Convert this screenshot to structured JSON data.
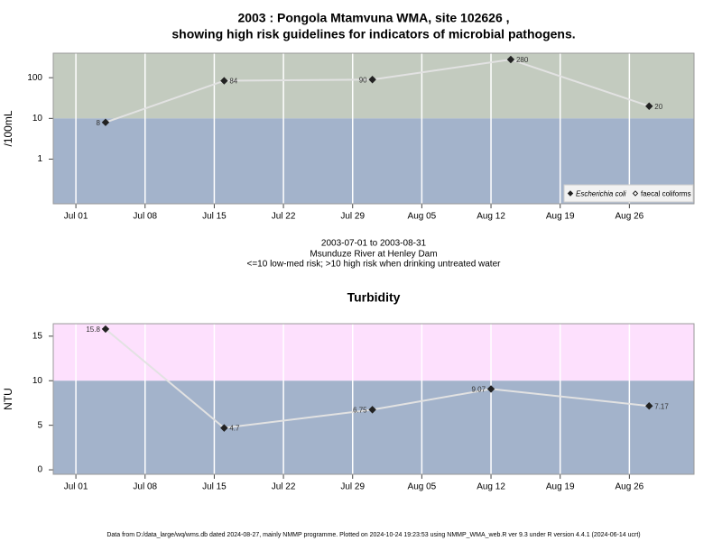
{
  "chart_data": [
    {
      "type": "line",
      "title": [
        "2003 : Pongola Mtamvuna WMA, site 102626 ,",
        "showing high risk guidelines for indicators of microbial pathogens."
      ],
      "ylabel": "/100mL",
      "notes": [
        "2003-07-01 to 2003-08-31",
        "Msunduze River at Henley Dam",
        "<=10 low-med risk; >10 high risk when drinking untreated water"
      ],
      "log_y": true,
      "x": [
        "2003-07-04",
        "2003-07-16",
        "2003-07-31",
        "2003-08-14",
        "2003-08-28"
      ],
      "series": [
        {
          "name": "Escherichia coli",
          "color": "#222222",
          "values": [
            8,
            84,
            90,
            280,
            20
          ]
        },
        {
          "name": "faecal coliforms",
          "color": "#ffffff",
          "values": [
            null,
            null,
            null,
            null,
            null
          ]
        }
      ],
      "line_color": "#e2e2e2",
      "threshold": 10,
      "band_colors": {
        "below": "#a3b3cb",
        "above": "#c3cbbf"
      },
      "xlim": [
        "2003-06-28T17:00",
        "2003-09-01T13:00"
      ],
      "xticks": [
        {
          "value": "2003-07-01",
          "label": "Jul 01"
        },
        {
          "value": "2003-07-08",
          "label": "Jul 08"
        },
        {
          "value": "2003-07-15",
          "label": "Jul 15"
        },
        {
          "value": "2003-07-22",
          "label": "Jul 22"
        },
        {
          "value": "2003-07-29",
          "label": "Jul 29"
        },
        {
          "value": "2003-08-05",
          "label": "Aug 05"
        },
        {
          "value": "2003-08-12",
          "label": "Aug 12"
        },
        {
          "value": "2003-08-19",
          "label": "Aug 19"
        },
        {
          "value": "2003-08-26",
          "label": "Aug 26"
        }
      ],
      "ylim": [
        0.08,
        400
      ],
      "yticks": [
        1,
        10,
        100
      ],
      "grid": "x",
      "legend": "bottom-right"
    },
    {
      "type": "line",
      "title": "Turbidity",
      "ylabel": "NTU",
      "log_y": false,
      "x": [
        "2003-07-04",
        "2003-07-16",
        "2003-07-31",
        "2003-08-12",
        "2003-08-28"
      ],
      "series": [
        {
          "color": "#222222",
          "values": [
            15.8,
            4.7,
            6.75,
            9.07,
            7.17
          ]
        }
      ],
      "line_color": "#e2e2e2",
      "threshold": 10,
      "band_colors": {
        "below": "#a3b3cb",
        "above": "#fde0fd"
      },
      "xlim": [
        "2003-06-28T17:00",
        "2003-09-01T13:00"
      ],
      "xticks": [
        {
          "value": "2003-07-01",
          "label": "Jul 01"
        },
        {
          "value": "2003-07-08",
          "label": "Jul 08"
        },
        {
          "value": "2003-07-15",
          "label": "Jul 15"
        },
        {
          "value": "2003-07-22",
          "label": "Jul 22"
        },
        {
          "value": "2003-07-29",
          "label": "Jul 29"
        },
        {
          "value": "2003-08-05",
          "label": "Aug 05"
        },
        {
          "value": "2003-08-12",
          "label": "Aug 12"
        },
        {
          "value": "2003-08-19",
          "label": "Aug 19"
        },
        {
          "value": "2003-08-26",
          "label": "Aug 26"
        }
      ],
      "ylim": [
        -0.5,
        16.4
      ],
      "yticks": [
        0,
        5,
        10,
        15
      ],
      "grid": "x"
    }
  ],
  "footer": "Data from D:/data_large/wq/wms.db dated 2024-08-27, mainly NMMP programme. Plotted on 2024-10-24 19:23:53 using NMMP_WMA_web.R ver 9.3 under R version 4.4.1 (2024-06-14 ucrt)"
}
